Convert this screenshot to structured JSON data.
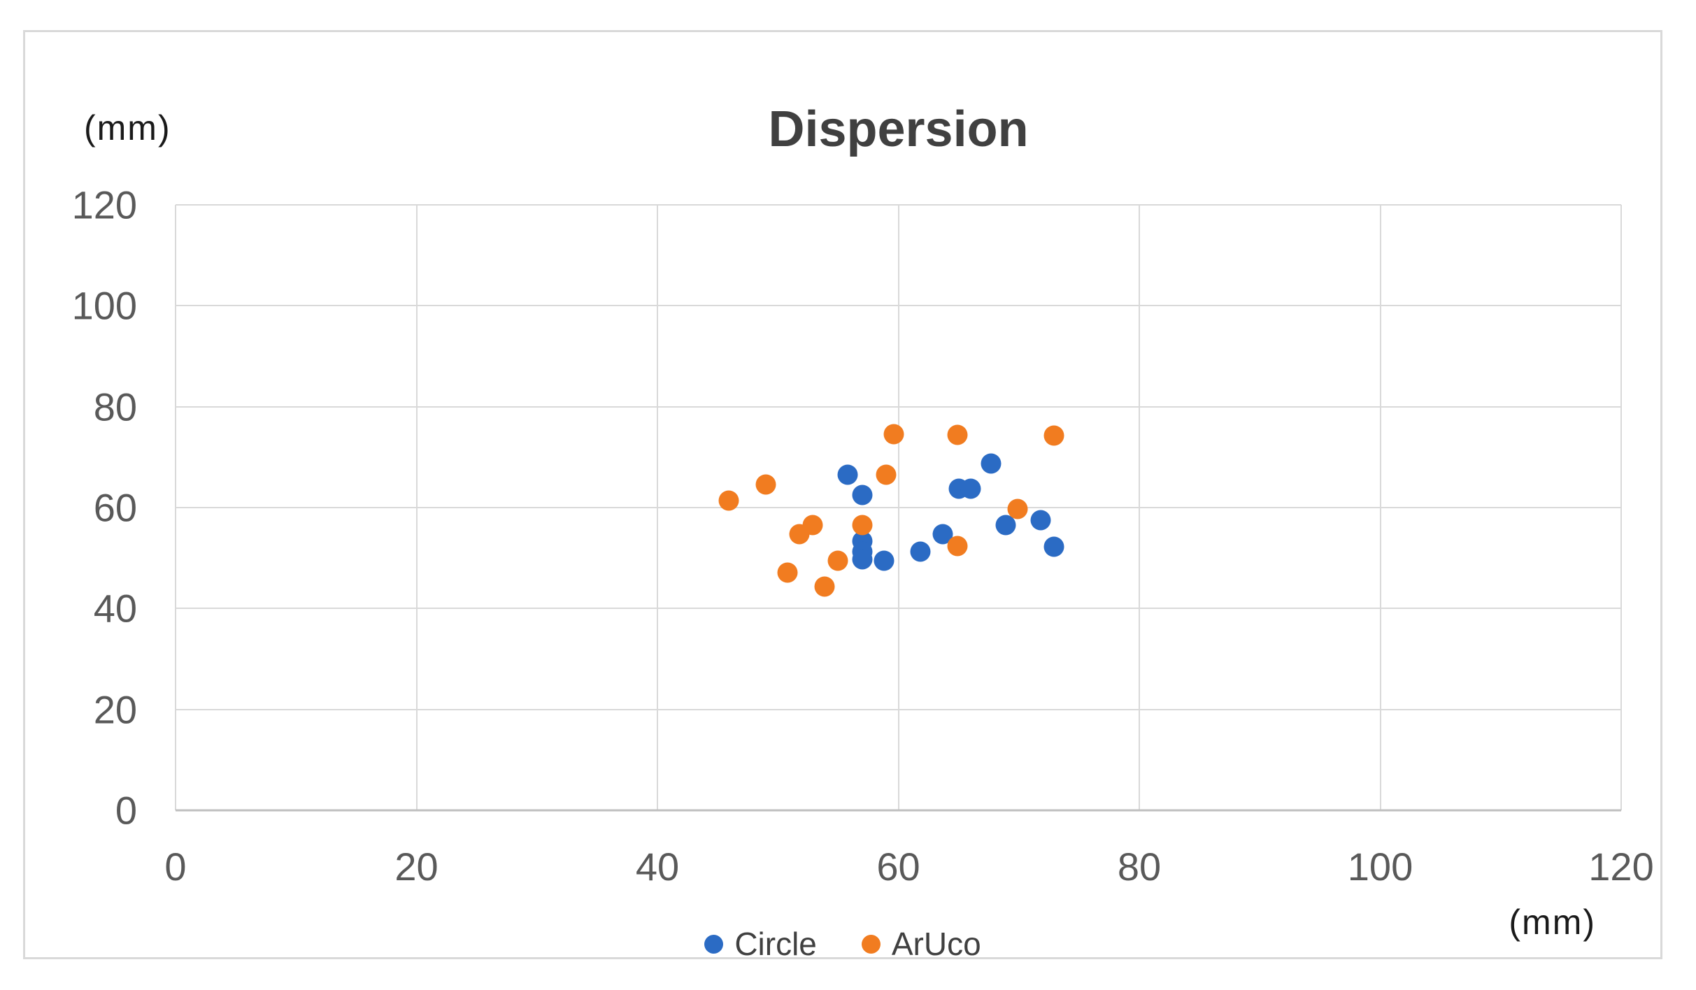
{
  "chart": {
    "title": "Dispersion",
    "y_axis_unit": "(mm)",
    "x_axis_unit": "(mm)",
    "legend": [
      {
        "label": "Circle",
        "color": "#2B6BC4"
      },
      {
        "label": "ArUco",
        "color": "#F17C20"
      }
    ]
  },
  "chart_data": {
    "type": "scatter",
    "title": "Dispersion",
    "xlabel": "(mm)",
    "ylabel": "(mm)",
    "xlim": [
      0,
      120
    ],
    "ylim": [
      0,
      120
    ],
    "x_ticks": [
      0,
      20,
      40,
      60,
      80,
      100,
      120
    ],
    "y_ticks": [
      0,
      20,
      40,
      60,
      80,
      100,
      120
    ],
    "grid": true,
    "legend_position": "bottom-center",
    "series": [
      {
        "name": "Circle",
        "color": "#2B6BC4",
        "points": [
          [
            55.8,
            66.5
          ],
          [
            57.0,
            62.5
          ],
          [
            57.0,
            53.3
          ],
          [
            57.0,
            51.3
          ],
          [
            57.0,
            49.8
          ],
          [
            58.8,
            49.4
          ],
          [
            61.8,
            51.3
          ],
          [
            63.7,
            54.7
          ],
          [
            65.0,
            63.8
          ],
          [
            66.0,
            63.8
          ],
          [
            67.7,
            68.7
          ],
          [
            68.9,
            56.5
          ],
          [
            71.8,
            57.5
          ],
          [
            72.9,
            52.2
          ]
        ]
      },
      {
        "name": "ArUco",
        "color": "#F17C20",
        "points": [
          [
            45.9,
            61.4
          ],
          [
            49.0,
            64.6
          ],
          [
            50.8,
            47.1
          ],
          [
            51.8,
            54.8
          ],
          [
            52.9,
            56.6
          ],
          [
            53.9,
            44.3
          ],
          [
            55.0,
            49.4
          ],
          [
            57.0,
            56.6
          ],
          [
            59.0,
            66.5
          ],
          [
            59.6,
            74.5
          ],
          [
            64.9,
            74.4
          ],
          [
            64.9,
            52.4
          ],
          [
            69.9,
            59.7
          ],
          [
            72.9,
            74.3
          ]
        ]
      }
    ]
  }
}
